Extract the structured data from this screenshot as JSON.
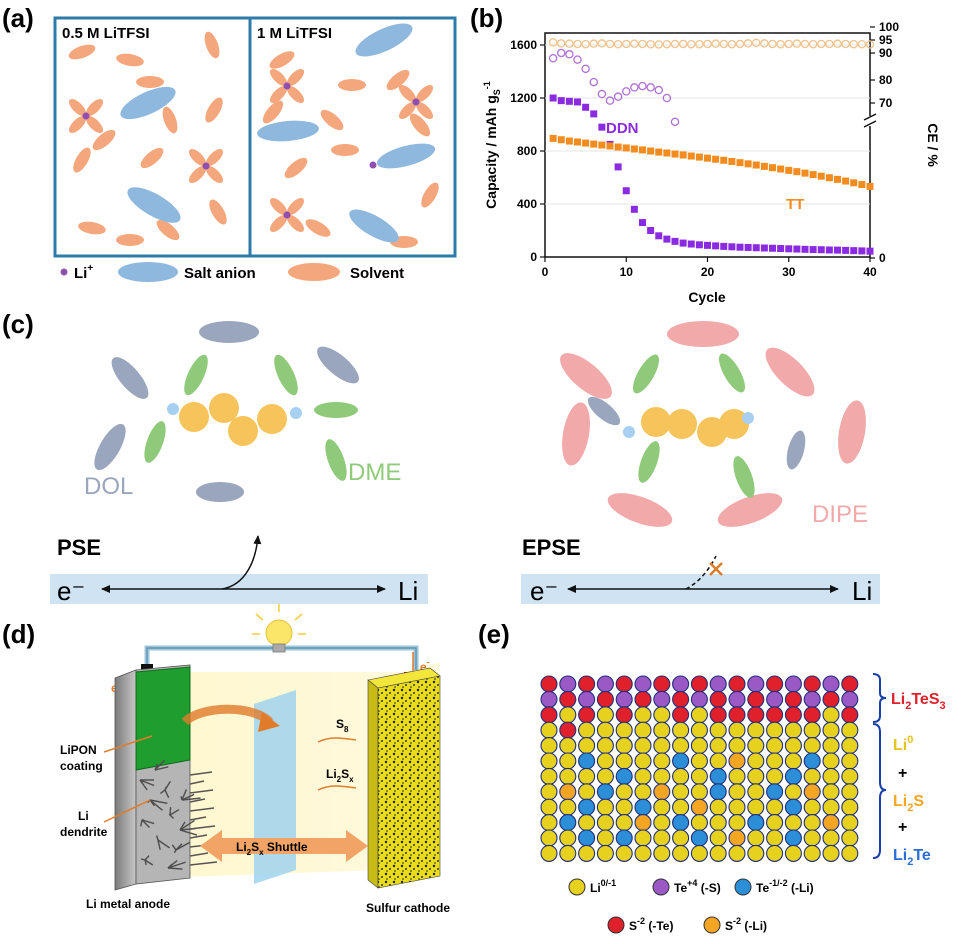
{
  "panels": {
    "a": "(a)",
    "b": "(b)",
    "c": "(c)",
    "d": "(d)",
    "e": "(e)"
  },
  "panel_a": {
    "left_title": "0.5 M LiTFSI",
    "right_title": "1 M LiTFSI",
    "legend": {
      "li": "Li",
      "li_sup": "+",
      "anion": "Salt anion",
      "solvent": "Solvent"
    },
    "colors": {
      "li": "#8e4fb0",
      "anion": "#8fb8de",
      "solvent": "#f4a77c",
      "frame": "#2c7ba8"
    }
  },
  "panel_b": {
    "chart_data": {
      "type": "scatter",
      "xlabel": "Cycle",
      "ylabel_left": "Capacity / mAh g",
      "ylabel_left_sub": "S",
      "ylabel_left_sup": "-1",
      "ylabel_right": "CE / %",
      "xlim": [
        0,
        40
      ],
      "ylim_left": [
        0,
        1600
      ],
      "x_ticks": [
        "0",
        "10",
        "20",
        "30",
        "40"
      ],
      "y_ticks": [
        "0",
        "400",
        "800",
        "1200",
        "1600"
      ],
      "ce_ticks_upper": [
        "90",
        "95",
        "100"
      ],
      "ce_ticks_lower": [
        "0",
        "70",
        "80"
      ],
      "series": [
        {
          "name": "DDN",
          "color": "#8a2be2",
          "marker": "square",
          "x": [
            1,
            2,
            3,
            4,
            5,
            6,
            7,
            8,
            9,
            10,
            11,
            12,
            13,
            14,
            15,
            16,
            17,
            18,
            19,
            20,
            21,
            22,
            23,
            24,
            25,
            26,
            27,
            28,
            29,
            30,
            31,
            32,
            33,
            34,
            35,
            36,
            37,
            38,
            39,
            40
          ],
          "y": [
            1200,
            1180,
            1175,
            1170,
            1130,
            1080,
            980,
            850,
            680,
            500,
            360,
            260,
            200,
            160,
            135,
            118,
            105,
            98,
            92,
            88,
            84,
            80,
            77,
            74,
            72,
            70,
            68,
            66,
            64,
            62,
            60,
            58,
            56,
            55,
            53,
            52,
            50,
            48,
            46,
            44
          ]
        },
        {
          "name": "TT",
          "color": "#f28c1e",
          "marker": "square",
          "x": [
            1,
            2,
            3,
            4,
            5,
            6,
            7,
            8,
            9,
            10,
            11,
            12,
            13,
            14,
            15,
            16,
            17,
            18,
            19,
            20,
            21,
            22,
            23,
            24,
            25,
            26,
            27,
            28,
            29,
            30,
            31,
            32,
            33,
            34,
            35,
            36,
            37,
            38,
            39,
            40
          ],
          "y": [
            895,
            885,
            875,
            868,
            860,
            852,
            845,
            838,
            830,
            823,
            815,
            808,
            800,
            792,
            785,
            777,
            770,
            762,
            754,
            746,
            738,
            730,
            721,
            712,
            703,
            694,
            684,
            674,
            664,
            654,
            644,
            633,
            622,
            610,
            598,
            586,
            573,
            560,
            547,
            533
          ]
        },
        {
          "name": "DDN CE",
          "color": "#b070d8",
          "marker": "circle-open",
          "x": [
            1,
            2,
            3,
            4,
            5,
            6,
            7,
            8,
            9,
            10,
            11,
            12,
            13,
            14,
            15,
            16
          ],
          "y": [
            1500,
            1540,
            1530,
            1490,
            1420,
            1320,
            1230,
            1180,
            1210,
            1250,
            1280,
            1290,
            1280,
            1260,
            1200,
            1020
          ]
        },
        {
          "name": "TT CE",
          "color": "#f2c28a",
          "marker": "circle-open",
          "x": [
            1,
            2,
            3,
            4,
            5,
            6,
            7,
            8,
            9,
            10,
            11,
            12,
            13,
            14,
            15,
            16,
            17,
            18,
            19,
            20,
            21,
            22,
            23,
            24,
            25,
            26,
            27,
            28,
            29,
            30,
            31,
            32,
            33,
            34,
            35,
            36,
            37,
            38,
            39,
            40
          ],
          "y": [
            1620,
            1612,
            1610,
            1608,
            1606,
            1610,
            1612,
            1608,
            1606,
            1608,
            1610,
            1608,
            1606,
            1604,
            1606,
            1608,
            1608,
            1606,
            1606,
            1608,
            1610,
            1608,
            1606,
            1608,
            1612,
            1616,
            1612,
            1608,
            1606,
            1608,
            1610,
            1608,
            1606,
            1608,
            1608,
            1610,
            1608,
            1606,
            1606,
            1604
          ]
        }
      ],
      "annotations": [
        "DDN",
        "TT"
      ]
    }
  },
  "panel_c": {
    "left_labels": {
      "dol": "DOL",
      "dme": "DME",
      "name": "PSE",
      "e": "e⁻",
      "li": "Li"
    },
    "right_labels": {
      "dipe": "DIPE",
      "name": "EPSE",
      "e": "e⁻",
      "li": "Li"
    },
    "colors": {
      "dol": "#9aa6bd",
      "dme": "#8fca7a",
      "dipe": "#f1a9aa",
      "poly": "#f7c35b",
      "li": "#a7cff0",
      "bar": "#cfe3f3"
    }
  },
  "panel_d": {
    "e_left": "e",
    "e_left_sup": "-",
    "e_right": "e",
    "e_right_sup": "-",
    "minus": "−",
    "plus": "+",
    "lipon": "LiPON",
    "coating": "coating",
    "li": "Li",
    "dendrite": "dendrite",
    "anode": "Li metal anode",
    "cathode": "Sulfur cathode",
    "s8": "S",
    "s8_sub": "8",
    "li2sx_a": "Li",
    "li2sx_sub1": "2",
    "li2sx_b": "S",
    "li2sx_sub2": "x",
    "shuttle_a": "Li",
    "shuttle_sub1": "2",
    "shuttle_b": "S",
    "shuttle_sub2": "x",
    "shuttle_c": " Shuttle"
  },
  "panel_e": {
    "right_labels": {
      "l1a": "Li",
      "l1sub": "2",
      "l1b": "TeS",
      "l1sub2": "3",
      "l2a": "Li",
      "l2sup": "0",
      "plus1": "+",
      "l3a": "Li",
      "l3sub": "2",
      "l3b": "S",
      "plus2": "+",
      "l4a": "Li",
      "l4sub": "2",
      "l4b": "Te"
    },
    "legend": [
      {
        "label": "Li",
        "sup": "0/-1",
        "suffix": "",
        "color": "#e6d21e"
      },
      {
        "label": "Te",
        "sup": "+4",
        "suffix": " (-S)",
        "color": "#9b59c6"
      },
      {
        "label": "Te",
        "sup": "-1/-2",
        "suffix": " (-Li)",
        "color": "#2b8ed6"
      },
      {
        "label": "S",
        "sup": "-2",
        "suffix": " (-Te)",
        "color": "#e0202a"
      },
      {
        "label": "S",
        "sup": "-2",
        "suffix": " (-Li)",
        "color": "#f4a623"
      }
    ]
  }
}
